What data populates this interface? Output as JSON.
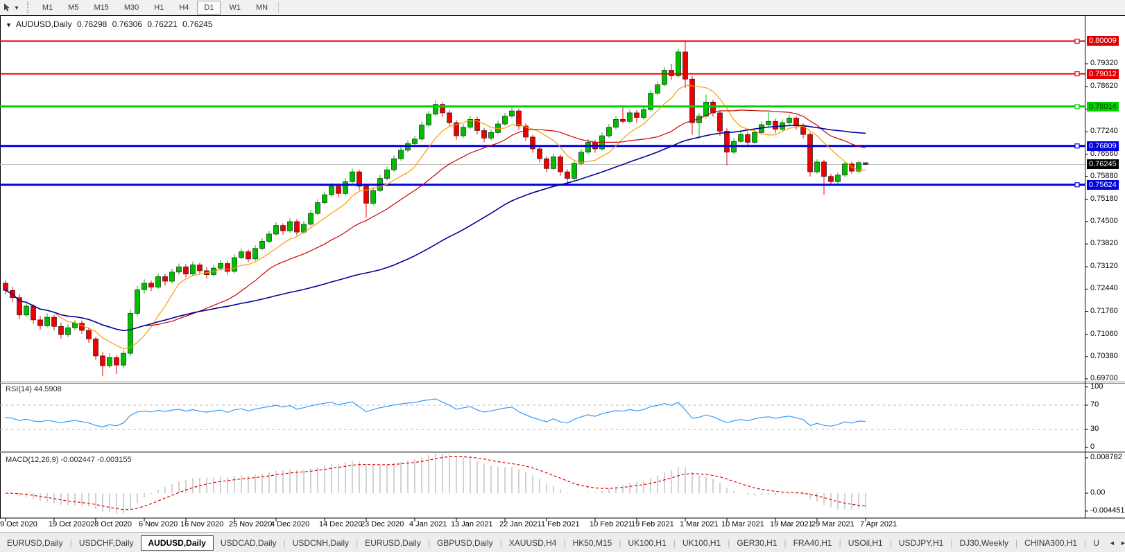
{
  "toolbar": {
    "timeframes": [
      {
        "label": "M1",
        "active": false
      },
      {
        "label": "M5",
        "active": false
      },
      {
        "label": "M15",
        "active": false
      },
      {
        "label": "M30",
        "active": false
      },
      {
        "label": "H1",
        "active": false
      },
      {
        "label": "H4",
        "active": false
      },
      {
        "label": "D1",
        "active": true
      },
      {
        "label": "W1",
        "active": false
      },
      {
        "label": "MN",
        "active": false
      }
    ]
  },
  "chart": {
    "title": {
      "symbol": "AUDUSD,Daily",
      "open": "0.76298",
      "high": "0.76306",
      "low": "0.76221",
      "close": "0.76245"
    },
    "colors": {
      "bull": "#00bf00",
      "bear": "#ee0000",
      "ma_fast": "#ff9900",
      "ma_mid": "#cc0000",
      "ma_slow": "#000099",
      "current_line": "#c0c0c0",
      "current_badge_bg": "#000000",
      "current_badge_fg": "#ffffff"
    },
    "price_axis_ticks": [
      {
        "label": "0.79320",
        "value": 0.7932
      },
      {
        "label": "0.78620",
        "value": 0.7862
      },
      {
        "label": "0.77940",
        "value": 0.7794
      },
      {
        "label": "0.77240",
        "value": 0.7724
      },
      {
        "label": "0.76560",
        "value": 0.7656
      },
      {
        "label": "0.75880",
        "value": 0.7588
      },
      {
        "label": "0.75180",
        "value": 0.7518
      },
      {
        "label": "0.74500",
        "value": 0.745
      },
      {
        "label": "0.73820",
        "value": 0.7382
      },
      {
        "label": "0.73120",
        "value": 0.7312
      },
      {
        "label": "0.72440",
        "value": 0.7244
      },
      {
        "label": "0.71760",
        "value": 0.7176
      },
      {
        "label": "0.71060",
        "value": 0.7106
      },
      {
        "label": "0.70380",
        "value": 0.7038
      },
      {
        "label": "0.69700",
        "value": 0.697
      }
    ],
    "levels": [
      {
        "label": "0.80009",
        "value": 0.80009,
        "color": "#e00000",
        "text_color": "#ffffff",
        "width": 2
      },
      {
        "label": "0.79012",
        "value": 0.79012,
        "color": "#e00000",
        "text_color": "#ffffff",
        "width": 2
      },
      {
        "label": "0.78014",
        "value": 0.78014,
        "color": "#00d200",
        "text_color": "#004000",
        "width": 3
      },
      {
        "label": "0.76809",
        "value": 0.76809,
        "color": "#0000dc",
        "text_color": "#ffffff",
        "width": 3
      },
      {
        "label": "0.75624",
        "value": 0.75624,
        "color": "#0000dc",
        "text_color": "#ffffff",
        "width": 3
      }
    ],
    "current_price": {
      "label": "0.76245",
      "value": 0.76245
    },
    "candles": [
      [
        0.7262,
        0.727,
        0.7228,
        0.724
      ],
      [
        0.724,
        0.7251,
        0.7205,
        0.7218
      ],
      [
        0.7218,
        0.7228,
        0.7152,
        0.7165
      ],
      [
        0.7165,
        0.7201,
        0.7158,
        0.7192
      ],
      [
        0.7192,
        0.7198,
        0.7138,
        0.715
      ],
      [
        0.715,
        0.7162,
        0.712,
        0.7132
      ],
      [
        0.7132,
        0.717,
        0.7128,
        0.7158
      ],
      [
        0.7158,
        0.7165,
        0.7118,
        0.713
      ],
      [
        0.713,
        0.7142,
        0.7092,
        0.7105
      ],
      [
        0.7105,
        0.7136,
        0.7098,
        0.7126
      ],
      [
        0.7126,
        0.715,
        0.7118,
        0.714
      ],
      [
        0.714,
        0.7148,
        0.7108,
        0.7118
      ],
      [
        0.7118,
        0.7126,
        0.708,
        0.7092
      ],
      [
        0.7092,
        0.7098,
        0.7028,
        0.704
      ],
      [
        0.704,
        0.7052,
        0.6978,
        0.701
      ],
      [
        0.701,
        0.7048,
        0.7002,
        0.7035
      ],
      [
        0.7035,
        0.7042,
        0.6985,
        0.7012
      ],
      [
        0.7012,
        0.7058,
        0.7005,
        0.7048
      ],
      [
        0.7048,
        0.7182,
        0.704,
        0.717
      ],
      [
        0.717,
        0.7254,
        0.7162,
        0.7242
      ],
      [
        0.7242,
        0.7274,
        0.723,
        0.7262
      ],
      [
        0.7262,
        0.727,
        0.7238,
        0.725
      ],
      [
        0.725,
        0.7292,
        0.7245,
        0.7282
      ],
      [
        0.7282,
        0.729,
        0.7255,
        0.7268
      ],
      [
        0.7268,
        0.7306,
        0.7262,
        0.7296
      ],
      [
        0.7296,
        0.7322,
        0.7288,
        0.7312
      ],
      [
        0.7312,
        0.732,
        0.728,
        0.729
      ],
      [
        0.729,
        0.7328,
        0.7285,
        0.7318
      ],
      [
        0.7318,
        0.7325,
        0.729,
        0.73
      ],
      [
        0.73,
        0.731,
        0.7276,
        0.7288
      ],
      [
        0.7288,
        0.7318,
        0.7282,
        0.7308
      ],
      [
        0.7308,
        0.7332,
        0.73,
        0.7322
      ],
      [
        0.7322,
        0.733,
        0.7288,
        0.7298
      ],
      [
        0.7298,
        0.735,
        0.7292,
        0.734
      ],
      [
        0.734,
        0.7368,
        0.7335,
        0.7358
      ],
      [
        0.7358,
        0.7365,
        0.7326,
        0.7336
      ],
      [
        0.7336,
        0.7378,
        0.733,
        0.7368
      ],
      [
        0.7368,
        0.74,
        0.7362,
        0.739
      ],
      [
        0.739,
        0.7422,
        0.7385,
        0.7412
      ],
      [
        0.7412,
        0.7448,
        0.7406,
        0.7438
      ],
      [
        0.7438,
        0.7445,
        0.741,
        0.7422
      ],
      [
        0.7422,
        0.746,
        0.7416,
        0.745
      ],
      [
        0.745,
        0.7458,
        0.7408,
        0.7418
      ],
      [
        0.7418,
        0.7452,
        0.7412,
        0.7442
      ],
      [
        0.7442,
        0.7485,
        0.7436,
        0.7475
      ],
      [
        0.7475,
        0.7518,
        0.747,
        0.7508
      ],
      [
        0.7508,
        0.7542,
        0.7502,
        0.7532
      ],
      [
        0.7532,
        0.7568,
        0.7526,
        0.7558
      ],
      [
        0.7558,
        0.7565,
        0.7524,
        0.7536
      ],
      [
        0.7536,
        0.7582,
        0.753,
        0.7572
      ],
      [
        0.7572,
        0.7612,
        0.7566,
        0.7602
      ],
      [
        0.7602,
        0.7608,
        0.7546,
        0.7558
      ],
      [
        0.7558,
        0.7566,
        0.7462,
        0.7506
      ],
      [
        0.7506,
        0.7555,
        0.75,
        0.7545
      ],
      [
        0.7545,
        0.7592,
        0.754,
        0.7582
      ],
      [
        0.7582,
        0.7618,
        0.7576,
        0.7608
      ],
      [
        0.7608,
        0.7652,
        0.7602,
        0.7642
      ],
      [
        0.7642,
        0.7678,
        0.7636,
        0.7668
      ],
      [
        0.7668,
        0.7698,
        0.7662,
        0.7688
      ],
      [
        0.7688,
        0.7712,
        0.768,
        0.7702
      ],
      [
        0.7702,
        0.7755,
        0.7696,
        0.7745
      ],
      [
        0.7745,
        0.7788,
        0.774,
        0.7778
      ],
      [
        0.7778,
        0.782,
        0.7772,
        0.7808
      ],
      [
        0.7808,
        0.7815,
        0.777,
        0.7782
      ],
      [
        0.7782,
        0.779,
        0.774,
        0.7752
      ],
      [
        0.7752,
        0.776,
        0.77,
        0.7712
      ],
      [
        0.7712,
        0.7748,
        0.7706,
        0.7738
      ],
      [
        0.7738,
        0.7772,
        0.7732,
        0.7762
      ],
      [
        0.7762,
        0.777,
        0.7716,
        0.7728
      ],
      [
        0.7728,
        0.7736,
        0.7692,
        0.7705
      ],
      [
        0.7705,
        0.7732,
        0.7698,
        0.7722
      ],
      [
        0.7722,
        0.7758,
        0.7716,
        0.7748
      ],
      [
        0.7748,
        0.7782,
        0.7742,
        0.7772
      ],
      [
        0.7772,
        0.7798,
        0.7766,
        0.7788
      ],
      [
        0.7788,
        0.7795,
        0.773,
        0.7742
      ],
      [
        0.7742,
        0.775,
        0.7696,
        0.7708
      ],
      [
        0.7708,
        0.7715,
        0.766,
        0.7672
      ],
      [
        0.7672,
        0.768,
        0.763,
        0.7642
      ],
      [
        0.7642,
        0.765,
        0.76,
        0.7612
      ],
      [
        0.7612,
        0.7658,
        0.7606,
        0.7648
      ],
      [
        0.7648,
        0.7655,
        0.759,
        0.7602
      ],
      [
        0.7602,
        0.761,
        0.7564,
        0.7582
      ],
      [
        0.7582,
        0.7638,
        0.7576,
        0.7628
      ],
      [
        0.7628,
        0.7672,
        0.7622,
        0.7662
      ],
      [
        0.7662,
        0.7702,
        0.7656,
        0.7692
      ],
      [
        0.7692,
        0.77,
        0.766,
        0.7672
      ],
      [
        0.7672,
        0.7722,
        0.7666,
        0.7712
      ],
      [
        0.7712,
        0.7748,
        0.7706,
        0.7738
      ],
      [
        0.7738,
        0.7772,
        0.7732,
        0.7762
      ],
      [
        0.7762,
        0.7805,
        0.775,
        0.7756
      ],
      [
        0.7756,
        0.7792,
        0.775,
        0.7782
      ],
      [
        0.7782,
        0.779,
        0.7752,
        0.7768
      ],
      [
        0.7768,
        0.7802,
        0.7762,
        0.7792
      ],
      [
        0.7792,
        0.7852,
        0.7786,
        0.7842
      ],
      [
        0.7842,
        0.7878,
        0.7836,
        0.7868
      ],
      [
        0.7868,
        0.7922,
        0.7862,
        0.7912
      ],
      [
        0.7912,
        0.7932,
        0.7882,
        0.7895
      ],
      [
        0.7895,
        0.7978,
        0.7888,
        0.7968
      ],
      [
        0.7968,
        0.8001,
        0.7858,
        0.7885
      ],
      [
        0.7885,
        0.7895,
        0.7715,
        0.7752
      ],
      [
        0.7752,
        0.7782,
        0.7705,
        0.7772
      ],
      [
        0.7772,
        0.7838,
        0.7766,
        0.7815
      ],
      [
        0.7815,
        0.7822,
        0.777,
        0.7782
      ],
      [
        0.7782,
        0.779,
        0.7712,
        0.7726
      ],
      [
        0.7726,
        0.7735,
        0.7622,
        0.7662
      ],
      [
        0.7662,
        0.7705,
        0.7656,
        0.7695
      ],
      [
        0.7695,
        0.7726,
        0.769,
        0.7716
      ],
      [
        0.7716,
        0.7724,
        0.768,
        0.7692
      ],
      [
        0.7692,
        0.7732,
        0.7686,
        0.7722
      ],
      [
        0.7722,
        0.7756,
        0.7716,
        0.7746
      ],
      [
        0.7746,
        0.7785,
        0.774,
        0.7756
      ],
      [
        0.7756,
        0.7764,
        0.772,
        0.7732
      ],
      [
        0.7732,
        0.7762,
        0.7726,
        0.7752
      ],
      [
        0.7752,
        0.7776,
        0.7746,
        0.7766
      ],
      [
        0.7766,
        0.7772,
        0.773,
        0.7742
      ],
      [
        0.7742,
        0.775,
        0.7704,
        0.7716
      ],
      [
        0.7716,
        0.7722,
        0.7588,
        0.7602
      ],
      [
        0.7602,
        0.764,
        0.7596,
        0.7632
      ],
      [
        0.7632,
        0.7638,
        0.7532,
        0.7588
      ],
      [
        0.7588,
        0.7596,
        0.7562,
        0.7572
      ],
      [
        0.7572,
        0.76,
        0.7566,
        0.7592
      ],
      [
        0.7592,
        0.7632,
        0.7586,
        0.7626
      ],
      [
        0.7626,
        0.7633,
        0.7596,
        0.7604
      ],
      [
        0.7604,
        0.7636,
        0.7598,
        0.763
      ],
      [
        0.76298,
        0.76306,
        0.76221,
        0.76245
      ]
    ]
  },
  "rsi": {
    "label": "RSI(14) 44.5908",
    "period": 14,
    "last_value": 44.5908,
    "line_color": "#3399ff",
    "guide_levels": [
      70,
      30
    ],
    "axis_ticks": [
      {
        "label": "100",
        "value": 100
      },
      {
        "label": "70",
        "value": 70
      },
      {
        "label": "30",
        "value": 30
      },
      {
        "label": "0",
        "value": 0
      }
    ]
  },
  "macd": {
    "label": "MACD(12,26,9) -0.002447 -0.003155",
    "fast": 12,
    "slow": 26,
    "signal": 9,
    "last_main": -0.002447,
    "last_signal": -0.003155,
    "hist_color": "#c6c6c6",
    "signal_color": "#e00000",
    "axis_ticks": [
      {
        "label": "0.008782",
        "value": 0.008782
      },
      {
        "label": "0.00",
        "value": 0
      },
      {
        "label": "-0.004451",
        "value": -0.004451
      }
    ]
  },
  "time_axis": {
    "ticks": [
      {
        "label": "9 Oct 2020",
        "bar": 0
      },
      {
        "label": "19 Oct 2020",
        "bar": 7
      },
      {
        "label": "28 Oct 2020",
        "bar": 13
      },
      {
        "label": "6 Nov 2020",
        "bar": 20
      },
      {
        "label": "16 Nov 2020",
        "bar": 26
      },
      {
        "label": "25 Nov 2020",
        "bar": 33
      },
      {
        "label": "4 Dec 2020",
        "bar": 39
      },
      {
        "label": "14 Dec 2020",
        "bar": 46
      },
      {
        "label": "23 Dec 2020",
        "bar": 52
      },
      {
        "label": "4 Jan 2021",
        "bar": 59
      },
      {
        "label": "13 Jan 2021",
        "bar": 65
      },
      {
        "label": "22 Jan 2021",
        "bar": 72
      },
      {
        "label": "1 Feb 2021",
        "bar": 78
      },
      {
        "label": "10 Feb 2021",
        "bar": 85
      },
      {
        "label": "19 Feb 2021",
        "bar": 91
      },
      {
        "label": "1 Mar 2021",
        "bar": 98
      },
      {
        "label": "10 Mar 2021",
        "bar": 104
      },
      {
        "label": "19 Mar 2021",
        "bar": 111
      },
      {
        "label": "29 Mar 2021",
        "bar": 117
      },
      {
        "label": "7 Apr 2021",
        "bar": 124
      }
    ]
  },
  "bottom_tabs": {
    "tabs": [
      {
        "label": "EURUSD,Daily",
        "active": false
      },
      {
        "label": "USDCHF,Daily",
        "active": false
      },
      {
        "label": "AUDUSD,Daily",
        "active": true
      },
      {
        "label": "USDCAD,Daily",
        "active": false
      },
      {
        "label": "USDCNH,Daily",
        "active": false
      },
      {
        "label": "EURUSD,Daily",
        "active": false
      },
      {
        "label": "GBPUSD,Daily",
        "active": false
      },
      {
        "label": "XAUUSD,H4",
        "active": false
      },
      {
        "label": "HK50,M15",
        "active": false
      },
      {
        "label": "UK100,H1",
        "active": false
      },
      {
        "label": "UK100,H1",
        "active": false
      },
      {
        "label": "GER30,H1",
        "active": false
      },
      {
        "label": "FRA40,H1",
        "active": false
      },
      {
        "label": "USOil,H1",
        "active": false
      },
      {
        "label": "USDJPY,H1",
        "active": false
      },
      {
        "label": "DJ30,Weekly",
        "active": false
      },
      {
        "label": "CHINA300,H1",
        "active": false
      },
      {
        "label": "U",
        "active": false
      }
    ],
    "scroll_left": "◄",
    "scroll_right": "►"
  }
}
